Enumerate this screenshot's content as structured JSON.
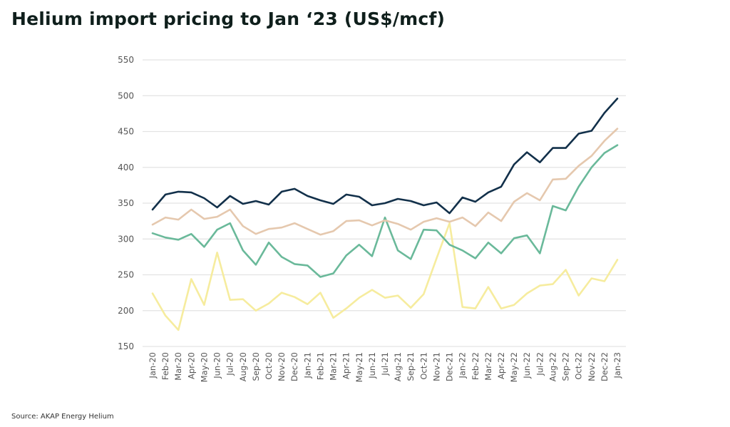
{
  "title": "Helium import pricing to Jan ‘23 (US$/mcf)",
  "source": "Source: AKAP Energy Helium",
  "chart_data": {
    "type": "line",
    "title": "Helium import pricing to Jan ‘23 (US$/mcf)",
    "xlabel": "",
    "ylabel": "",
    "ylim": [
      150,
      550
    ],
    "yticks": [
      150,
      200,
      250,
      300,
      350,
      400,
      450,
      500,
      550
    ],
    "grid": "horizontal",
    "legend": "none",
    "categories": [
      "Jan-20",
      "Feb-20",
      "Mar-20",
      "Apr-20",
      "May-20",
      "Jun-20",
      "Jul-20",
      "Aug-20",
      "Sep-20",
      "Oct-20",
      "Nov-20",
      "Dec-20",
      "Jan-21",
      "Feb-21",
      "Mar-21",
      "Apr-21",
      "May-21",
      "Jun-21",
      "Jul-21",
      "Aug-21",
      "Sep-21",
      "Oct-21",
      "Nov-21",
      "Dec-21",
      "Jan-22",
      "Feb-22",
      "Mar-22",
      "Apr-22",
      "May-22",
      "Jun-22",
      "Jul-22",
      "Aug-22",
      "Sep-22",
      "Oct-22",
      "Nov-22",
      "Dec-22",
      "Jan-23"
    ],
    "series": [
      {
        "color": "#12304a",
        "values": [
          341,
          362,
          366,
          365,
          357,
          344,
          360,
          349,
          353,
          348,
          366,
          370,
          360,
          354,
          349,
          362,
          359,
          347,
          350,
          356,
          353,
          347,
          351,
          336,
          358,
          352,
          365,
          373,
          404,
          421,
          407,
          427,
          427,
          447,
          451,
          476,
          496
        ]
      },
      {
        "color": "#e5c8ae",
        "values": [
          320,
          330,
          327,
          341,
          328,
          331,
          341,
          318,
          307,
          314,
          316,
          322,
          314,
          306,
          311,
          325,
          326,
          319,
          326,
          321,
          313,
          324,
          329,
          324,
          330,
          318,
          337,
          325,
          352,
          364,
          354,
          383,
          384,
          402,
          416,
          437,
          454
        ]
      },
      {
        "color": "#6ab99a",
        "values": [
          308,
          302,
          299,
          307,
          289,
          313,
          322,
          284,
          264,
          295,
          275,
          265,
          263,
          247,
          252,
          277,
          292,
          276,
          330,
          284,
          272,
          313,
          312,
          292,
          284,
          273,
          295,
          280,
          301,
          305,
          280,
          346,
          340,
          373,
          400,
          420,
          431
        ]
      },
      {
        "color": "#f6ec9e",
        "values": [
          224,
          193,
          173,
          244,
          208,
          281,
          215,
          216,
          200,
          210,
          225,
          219,
          209,
          225,
          190,
          203,
          218,
          229,
          218,
          221,
          204,
          223,
          273,
          322,
          205,
          203,
          233,
          203,
          208,
          224,
          235,
          237,
          257,
          221,
          245,
          241,
          271
        ]
      }
    ]
  }
}
